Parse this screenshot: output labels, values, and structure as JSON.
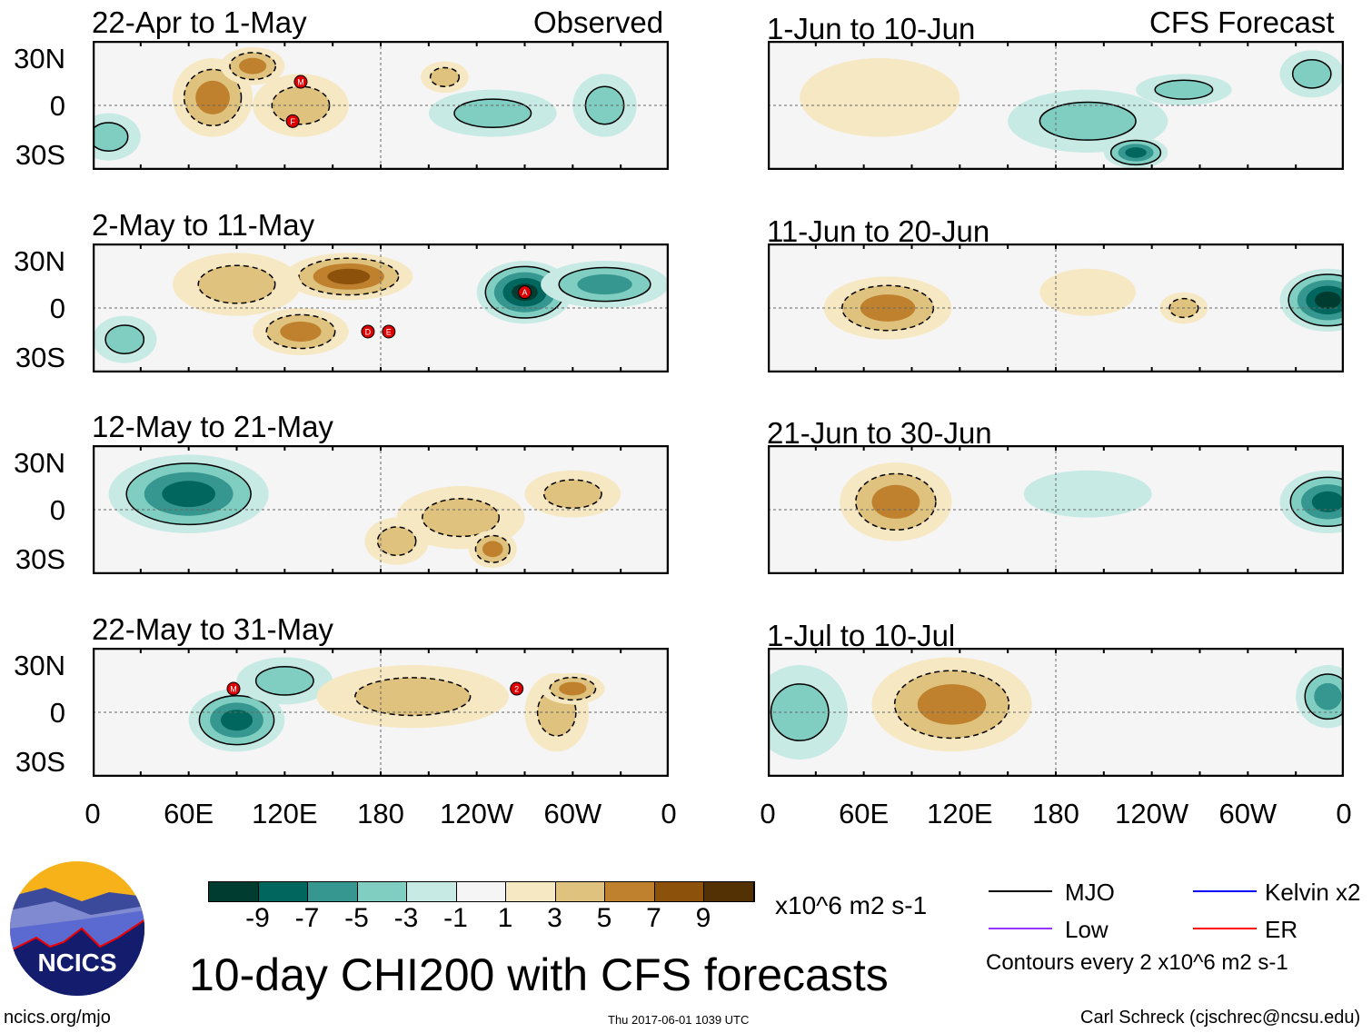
{
  "header": {
    "observed_label": "Observed",
    "forecast_label": "CFS Forecast"
  },
  "lat_labels": [
    "30N",
    "0",
    "30S"
  ],
  "lon_labels": [
    "0",
    "60E",
    "120E",
    "180",
    "120W",
    "60W",
    "0"
  ],
  "colorbar": {
    "levels": [
      "-9",
      "-7",
      "-5",
      "-3",
      "-1",
      "1",
      "3",
      "5",
      "7",
      "9"
    ],
    "colors": [
      "#003c30",
      "#01665e",
      "#35978f",
      "#80cdc1",
      "#c7eae5",
      "#f5f5f5",
      "#f6e8c3",
      "#dfc27d",
      "#bf812d",
      "#8c510a",
      "#543005"
    ],
    "units": "x10^6 m2 s-1"
  },
  "legend": {
    "mjo": "MJO",
    "kelvin": "Kelvin x2",
    "low": "Low",
    "er": "ER",
    "contours_note": "Contours every 2 x10^6 m2 s-1",
    "mjo_color": "#000000",
    "kelvin_color": "#0000ff",
    "low_color": "#9933ff",
    "er_color": "#ff0000"
  },
  "title": "10-day CHI200 with CFS forecasts",
  "footer": {
    "url": "ncics.org/mjo",
    "timestamp": "Thu 2017-06-01 1039 UTC",
    "author": "Carl Schreck (cjschrec@ncsu.edu)"
  },
  "logo_text": "NCICS",
  "panels": [
    {
      "title": "22-Apr to 1-May",
      "blobs": [
        [
          75,
          5,
          25,
          25,
          5
        ],
        [
          100,
          25,
          20,
          12,
          5
        ],
        [
          130,
          0,
          30,
          20,
          3
        ],
        [
          220,
          18,
          15,
          10,
          3
        ],
        [
          250,
          -5,
          40,
          15,
          -3
        ],
        [
          320,
          0,
          20,
          20,
          -3
        ],
        [
          10,
          -20,
          20,
          15,
          -3
        ]
      ],
      "storms": [
        [
          "M",
          130,
          15
        ],
        [
          "F",
          125,
          -10
        ]
      ]
    },
    {
      "title": "2-May to 11-May",
      "blobs": [
        [
          160,
          20,
          40,
          15,
          7
        ],
        [
          130,
          -15,
          30,
          15,
          5
        ],
        [
          90,
          15,
          40,
          20,
          3
        ],
        [
          270,
          10,
          30,
          20,
          -9
        ],
        [
          320,
          15,
          40,
          15,
          -5
        ],
        [
          20,
          -20,
          20,
          15,
          -3
        ]
      ],
      "storms": [
        [
          "A",
          270,
          10
        ],
        [
          "D",
          172,
          -15
        ],
        [
          "E",
          185,
          -15
        ]
      ]
    },
    {
      "title": "12-May to 21-May",
      "blobs": [
        [
          60,
          10,
          50,
          25,
          -7
        ],
        [
          230,
          -5,
          40,
          20,
          3
        ],
        [
          250,
          -25,
          15,
          12,
          5
        ],
        [
          190,
          -20,
          20,
          15,
          3
        ],
        [
          300,
          10,
          30,
          15,
          3
        ]
      ],
      "storms": []
    },
    {
      "title": "22-May to 31-May",
      "blobs": [
        [
          90,
          -5,
          30,
          20,
          -7
        ],
        [
          120,
          20,
          30,
          15,
          -3
        ],
        [
          200,
          10,
          60,
          20,
          3
        ],
        [
          290,
          0,
          20,
          25,
          3
        ],
        [
          300,
          15,
          20,
          10,
          5
        ]
      ],
      "storms": [
        [
          "M",
          88,
          15
        ],
        [
          "2",
          265,
          15
        ]
      ]
    },
    {
      "title": "1-Jun to 10-Jun",
      "blobs": [
        [
          70,
          5,
          50,
          25,
          1
        ],
        [
          200,
          -10,
          50,
          20,
          -3
        ],
        [
          230,
          -30,
          20,
          10,
          -7
        ],
        [
          260,
          10,
          30,
          10,
          -3
        ],
        [
          340,
          20,
          20,
          15,
          -3
        ]
      ],
      "storms": []
    },
    {
      "title": "11-Jun to 20-Jun",
      "blobs": [
        [
          75,
          0,
          40,
          20,
          5
        ],
        [
          350,
          5,
          30,
          20,
          -9
        ],
        [
          200,
          10,
          30,
          15,
          1
        ],
        [
          260,
          0,
          15,
          10,
          3
        ]
      ],
      "storms": []
    },
    {
      "title": "21-Jun to 30-Jun",
      "blobs": [
        [
          80,
          5,
          35,
          25,
          5
        ],
        [
          350,
          5,
          30,
          20,
          -7
        ],
        [
          200,
          10,
          40,
          15,
          -1
        ]
      ],
      "storms": []
    },
    {
      "title": "1-Jul to 10-Jul",
      "blobs": [
        [
          115,
          5,
          50,
          30,
          5
        ],
        [
          20,
          0,
          30,
          30,
          -3
        ],
        [
          350,
          10,
          20,
          20,
          -5
        ]
      ],
      "storms": []
    }
  ]
}
